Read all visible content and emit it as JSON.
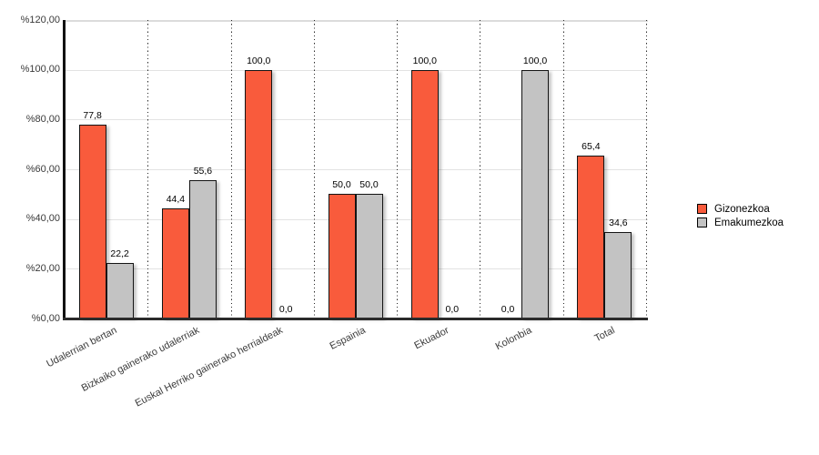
{
  "chart_data": {
    "type": "bar",
    "title": "",
    "categories": [
      "Udalerrian bertan",
      "Bizkaiko gainerako udalerriak",
      "Euskal Herriko gainerako herrialdeak",
      "Espainia",
      "Ekuador",
      "Kolonbia",
      "Total"
    ],
    "series": [
      {
        "name": "Gizonezkoa",
        "color": "#F95B3C",
        "values": [
          77.8,
          44.4,
          100.0,
          50.0,
          100.0,
          0.0,
          65.4
        ],
        "value_labels": [
          "77,8",
          "44,4",
          "100,0",
          "50,0",
          "100,0",
          "0,0",
          "65,4"
        ]
      },
      {
        "name": "Emakumezkoa",
        "color": "#C3C3C3",
        "values": [
          22.2,
          55.6,
          0.0,
          50.0,
          0.0,
          100.0,
          34.6
        ],
        "value_labels": [
          "22,2",
          "55,6",
          "0,0",
          "50,0",
          "0,0",
          "100,0",
          "34,6"
        ]
      }
    ],
    "y_axis": {
      "min": 0,
      "max": 120,
      "tick_values": [
        0,
        20,
        40,
        60,
        80,
        100,
        120
      ],
      "tick_labels": [
        "%0,00",
        "%20,00",
        "%40,00",
        "%60,00",
        "%80,00",
        "%100,00",
        "%120,00"
      ]
    },
    "grid": true,
    "legend_position": "right",
    "colors": {
      "bar_border": "#141414",
      "gridline": "#e3e3e3",
      "axis_line": "#111111",
      "text": "#3a3a3a"
    }
  }
}
